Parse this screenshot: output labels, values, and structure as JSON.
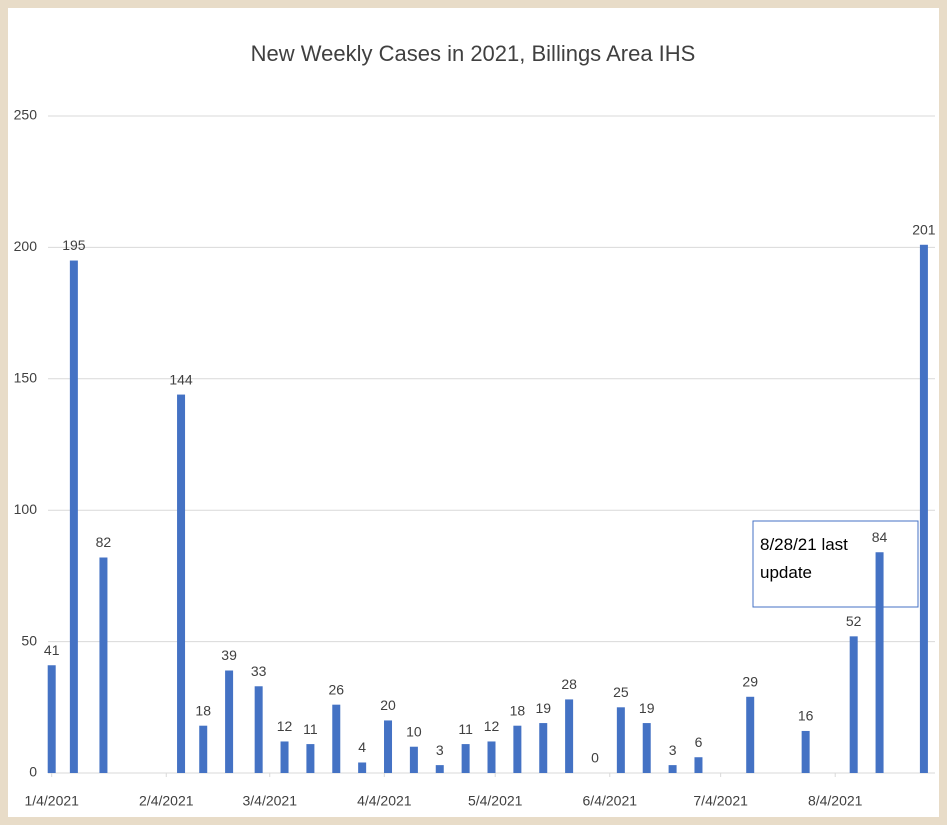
{
  "chart_data": {
    "type": "bar",
    "title": "New Weekly Cases in 2021, Billings Area IHS",
    "x": [
      "1/4/2021",
      "1/10/2021",
      "1/18/2021",
      "2/8/2021",
      "2/14/2021",
      "2/21/2021",
      "3/1/2021",
      "3/8/2021",
      "3/15/2021",
      "3/22/2021",
      "3/29/2021",
      "4/5/2021",
      "4/12/2021",
      "4/19/2021",
      "4/26/2021",
      "5/3/2021",
      "5/10/2021",
      "5/17/2021",
      "5/24/2021",
      "5/31/2021",
      "6/7/2021",
      "6/14/2021",
      "6/21/2021",
      "6/28/2021",
      "7/12/2021",
      "7/27/2021",
      "8/9/2021",
      "8/16/2021",
      "8/28/2021"
    ],
    "values": [
      41,
      195,
      82,
      144,
      18,
      39,
      33,
      12,
      11,
      26,
      4,
      20,
      10,
      3,
      11,
      12,
      18,
      19,
      28,
      0,
      25,
      19,
      3,
      6,
      29,
      16,
      52,
      84,
      201
    ],
    "color": "#4472c4",
    "xlim": [
      "1/3/2021",
      "8/31/2021"
    ],
    "xticks": [
      "1/4/2021",
      "2/4/2021",
      "3/4/2021",
      "4/4/2021",
      "5/4/2021",
      "6/4/2021",
      "7/4/2021",
      "8/4/2021"
    ],
    "ylim": [
      0,
      250
    ],
    "yticks": [
      0,
      50,
      100,
      150,
      200,
      250
    ],
    "grid": true,
    "annotation": "8/28/21 last update"
  }
}
